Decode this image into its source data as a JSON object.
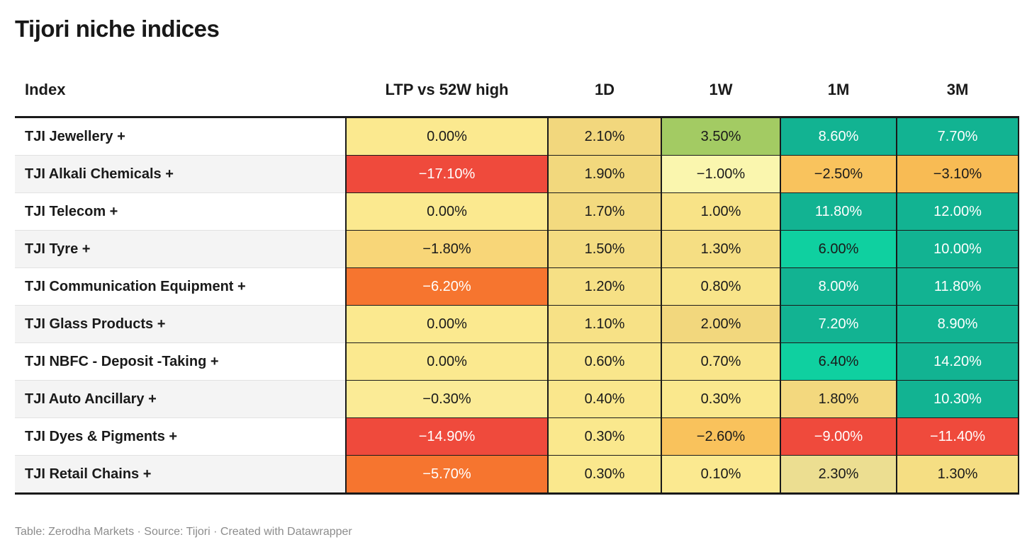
{
  "title": "Tijori niche indices",
  "footer": {
    "text": "Table: Zerodha Markets · Source: Tijori · Created with Datawrapper"
  },
  "colors": {
    "text_dark": "#1a1a1a",
    "text_light": "#ffffff",
    "border_dark": "#1a1a1a",
    "row_alt_bg": "#f4f4f4",
    "footer_text": "#8c8c8c",
    "scale_red": "#EF4A3C",
    "scale_orange": "#F6752F",
    "scale_amber": "#F9C35D",
    "scale_yellow": "#FBE98F",
    "scale_green": "#A3CB63",
    "scale_bright_teal": "#0FD0A0",
    "scale_teal": "#12B392"
  },
  "table": {
    "columns": [
      "Index",
      "LTP vs 52W high",
      "1D",
      "1W",
      "1M",
      "3M"
    ],
    "rows": [
      {
        "label": "TJI Jewellery +",
        "cells": [
          {
            "text": "0.00%",
            "bg": "#FBE98F",
            "fg": "dark"
          },
          {
            "text": "2.10%",
            "bg": "#F2D77D",
            "fg": "dark"
          },
          {
            "text": "3.50%",
            "bg": "#A3CB63",
            "fg": "dark"
          },
          {
            "text": "8.60%",
            "bg": "#12B392",
            "fg": "light"
          },
          {
            "text": "7.70%",
            "bg": "#12B392",
            "fg": "light"
          }
        ]
      },
      {
        "label": "TJI Alkali Chemicals +",
        "cells": [
          {
            "text": "−17.10%",
            "bg": "#EF4A3C",
            "fg": "light"
          },
          {
            "text": "1.90%",
            "bg": "#F2D87D",
            "fg": "dark"
          },
          {
            "text": "−1.00%",
            "bg": "#FAF6AE",
            "fg": "dark"
          },
          {
            "text": "−2.50%",
            "bg": "#F9C35D",
            "fg": "dark"
          },
          {
            "text": "−3.10%",
            "bg": "#F8BB54",
            "fg": "dark"
          }
        ]
      },
      {
        "label": "TJI Telecom +",
        "cells": [
          {
            "text": "0.00%",
            "bg": "#FBE98F",
            "fg": "dark"
          },
          {
            "text": "1.70%",
            "bg": "#F3DA7F",
            "fg": "dark"
          },
          {
            "text": "1.00%",
            "bg": "#F8E387",
            "fg": "dark"
          },
          {
            "text": "11.80%",
            "bg": "#12B392",
            "fg": "light"
          },
          {
            "text": "12.00%",
            "bg": "#12B392",
            "fg": "light"
          }
        ]
      },
      {
        "label": "TJI Tyre +",
        "cells": [
          {
            "text": "−1.80%",
            "bg": "#F8D678",
            "fg": "dark"
          },
          {
            "text": "1.50%",
            "bg": "#F4DC81",
            "fg": "dark"
          },
          {
            "text": "1.30%",
            "bg": "#F5DE83",
            "fg": "dark"
          },
          {
            "text": "6.00%",
            "bg": "#0FD0A0",
            "fg": "dark"
          },
          {
            "text": "10.00%",
            "bg": "#12B392",
            "fg": "light"
          }
        ]
      },
      {
        "label": "TJI Communication Equipment +",
        "cells": [
          {
            "text": "−6.20%",
            "bg": "#F6752F",
            "fg": "light"
          },
          {
            "text": "1.20%",
            "bg": "#F6E085",
            "fg": "dark"
          },
          {
            "text": "0.80%",
            "bg": "#F8E489",
            "fg": "dark"
          },
          {
            "text": "8.00%",
            "bg": "#12B392",
            "fg": "light"
          },
          {
            "text": "11.80%",
            "bg": "#12B392",
            "fg": "light"
          }
        ]
      },
      {
        "label": "TJI Glass Products +",
        "cells": [
          {
            "text": "0.00%",
            "bg": "#FBE98F",
            "fg": "dark"
          },
          {
            "text": "1.10%",
            "bg": "#F7E186",
            "fg": "dark"
          },
          {
            "text": "2.00%",
            "bg": "#F2D77D",
            "fg": "dark"
          },
          {
            "text": "7.20%",
            "bg": "#12B392",
            "fg": "light"
          },
          {
            "text": "8.90%",
            "bg": "#12B392",
            "fg": "light"
          }
        ]
      },
      {
        "label": "TJI NBFC - Deposit -Taking +",
        "cells": [
          {
            "text": "0.00%",
            "bg": "#FBE98F",
            "fg": "dark"
          },
          {
            "text": "0.60%",
            "bg": "#F9E68B",
            "fg": "dark"
          },
          {
            "text": "0.70%",
            "bg": "#F9E58A",
            "fg": "dark"
          },
          {
            "text": "6.40%",
            "bg": "#0FD0A0",
            "fg": "dark"
          },
          {
            "text": "14.20%",
            "bg": "#12B392",
            "fg": "light"
          }
        ]
      },
      {
        "label": "TJI Auto Ancillary +",
        "cells": [
          {
            "text": "−0.30%",
            "bg": "#FBEB96",
            "fg": "dark"
          },
          {
            "text": "0.40%",
            "bg": "#FAE78C",
            "fg": "dark"
          },
          {
            "text": "0.30%",
            "bg": "#FAE88D",
            "fg": "dark"
          },
          {
            "text": "1.80%",
            "bg": "#F3D87E",
            "fg": "dark"
          },
          {
            "text": "10.30%",
            "bg": "#12B392",
            "fg": "light"
          }
        ]
      },
      {
        "label": "TJI Dyes & Pigments +",
        "cells": [
          {
            "text": "−14.90%",
            "bg": "#EF4A3C",
            "fg": "light"
          },
          {
            "text": "0.30%",
            "bg": "#FAE88D",
            "fg": "dark"
          },
          {
            "text": "−2.60%",
            "bg": "#F9C25C",
            "fg": "dark"
          },
          {
            "text": "−9.00%",
            "bg": "#EF4A3C",
            "fg": "light"
          },
          {
            "text": "−11.40%",
            "bg": "#EF4A3C",
            "fg": "light"
          }
        ]
      },
      {
        "label": "TJI Retail Chains +",
        "cells": [
          {
            "text": "−5.70%",
            "bg": "#F6752F",
            "fg": "light"
          },
          {
            "text": "0.30%",
            "bg": "#FAE88D",
            "fg": "dark"
          },
          {
            "text": "0.10%",
            "bg": "#FBE990",
            "fg": "dark"
          },
          {
            "text": "2.30%",
            "bg": "#ECDE91",
            "fg": "dark"
          },
          {
            "text": "1.30%",
            "bg": "#F5DE83",
            "fg": "dark"
          }
        ]
      }
    ]
  },
  "chart_data": {
    "type": "table",
    "title": "Tijori niche indices",
    "columns": [
      "Index",
      "LTP vs 52W high",
      "1D",
      "1W",
      "1M",
      "3M"
    ],
    "units": "percent",
    "color_encoding": "diverging scale by cell value: red (≈ −17) → orange → amber → yellow (≈ 0) → green → teal (positive)",
    "rows": [
      [
        "TJI Jewellery +",
        0.0,
        2.1,
        3.5,
        8.6,
        7.7
      ],
      [
        "TJI Alkali Chemicals +",
        -17.1,
        1.9,
        -1.0,
        -2.5,
        -3.1
      ],
      [
        "TJI Telecom +",
        0.0,
        1.7,
        1.0,
        11.8,
        12.0
      ],
      [
        "TJI Tyre +",
        -1.8,
        1.5,
        1.3,
        6.0,
        10.0
      ],
      [
        "TJI Communication Equipment +",
        -6.2,
        1.2,
        0.8,
        8.0,
        11.8
      ],
      [
        "TJI Glass Products +",
        0.0,
        1.1,
        2.0,
        7.2,
        8.9
      ],
      [
        "TJI NBFC - Deposit -Taking +",
        0.0,
        0.6,
        0.7,
        6.4,
        14.2
      ],
      [
        "TJI Auto Ancillary +",
        -0.3,
        0.4,
        0.3,
        1.8,
        10.3
      ],
      [
        "TJI Dyes & Pigments +",
        -14.9,
        0.3,
        -2.6,
        -9.0,
        -11.4
      ],
      [
        "TJI Retail Chains +",
        -5.7,
        0.3,
        0.1,
        2.3,
        1.3
      ]
    ],
    "footer": "Table: Zerodha Markets · Source: Tijori · Created with Datawrapper"
  }
}
